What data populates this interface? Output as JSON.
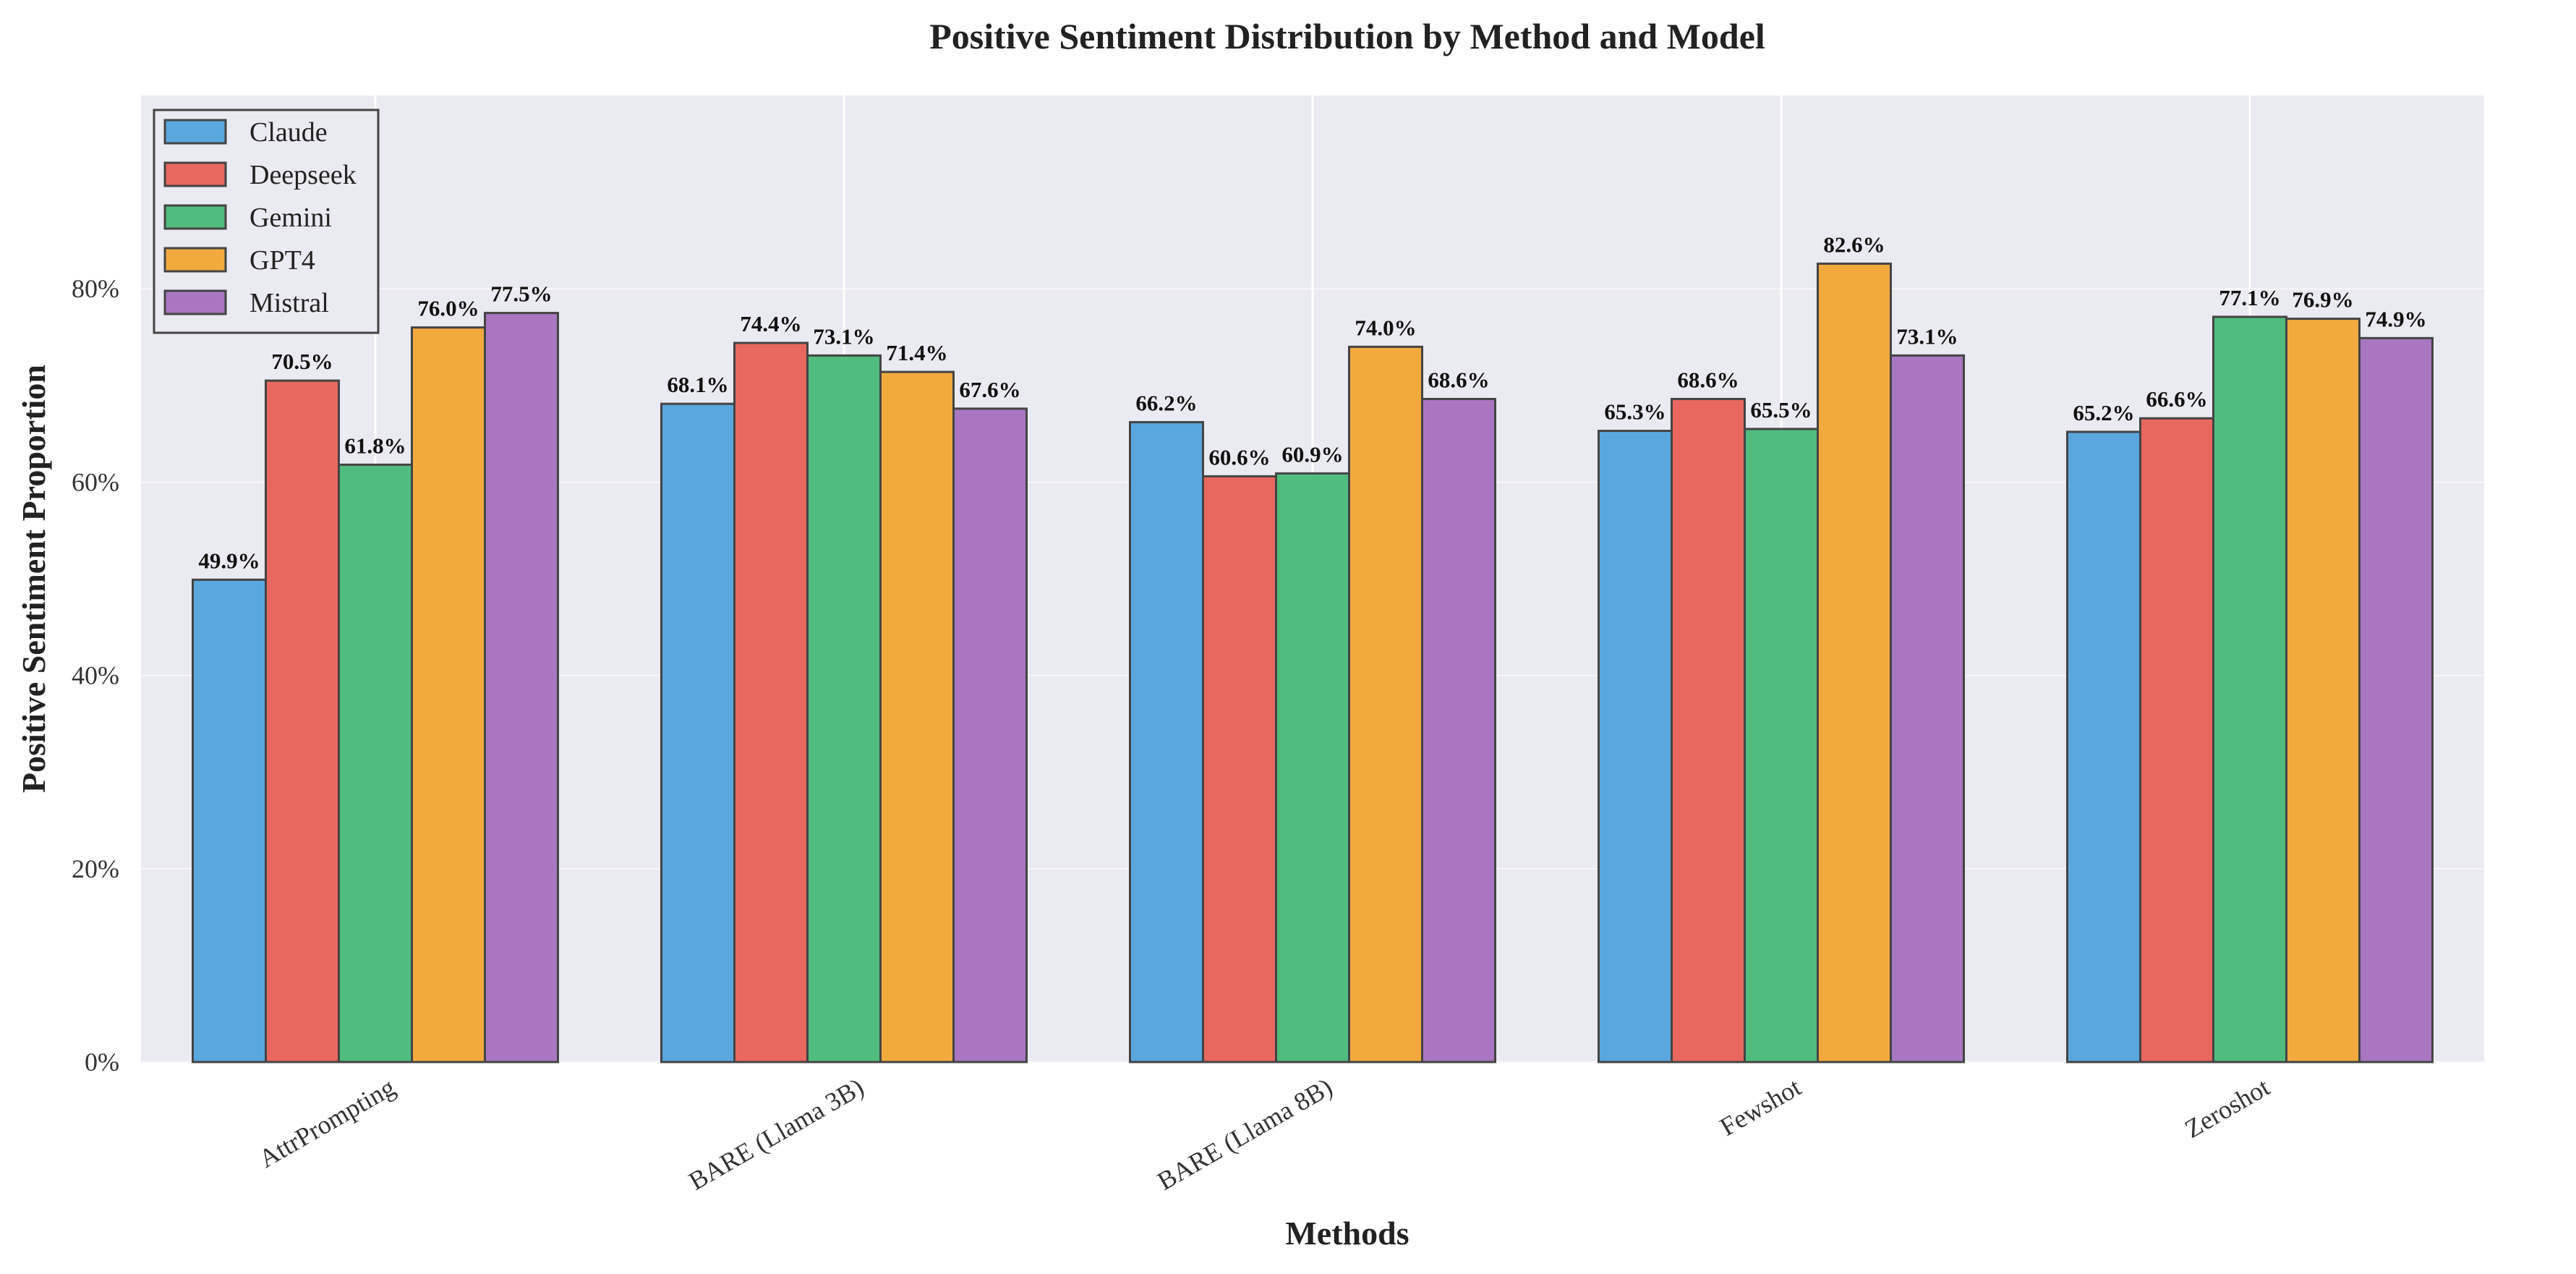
{
  "chart_data": {
    "type": "bar",
    "title": "Positive Sentiment Distribution by Method and Model",
    "xlabel": "Methods",
    "ylabel": "Positive Sentiment Proportion",
    "categories": [
      "AttrPrompting",
      "BARE (Llama 3B)",
      "BARE (Llama 8B)",
      "Fewshot",
      "Zeroshot"
    ],
    "ylim": [
      0,
      100
    ],
    "yticks": [
      0,
      20,
      40,
      60,
      80
    ],
    "ytick_labels": [
      "0%",
      "20%",
      "40%",
      "60%",
      "80%"
    ],
    "grid": true,
    "legend_position": "top-left",
    "series": [
      {
        "name": "Claude",
        "color": "#5aa7de",
        "values": [
          49.9,
          68.1,
          66.2,
          65.3,
          65.2
        ],
        "labels": [
          "49.9%",
          "68.1%",
          "66.2%",
          "65.3%",
          "65.2%"
        ]
      },
      {
        "name": "Deepseek",
        "color": "#e8685f",
        "values": [
          70.5,
          74.4,
          60.6,
          68.6,
          66.6
        ],
        "labels": [
          "70.5%",
          "74.4%",
          "60.6%",
          "68.6%",
          "66.6%"
        ]
      },
      {
        "name": "Gemini",
        "color": "#50bc7e",
        "values": [
          61.8,
          73.1,
          60.9,
          65.5,
          77.1
        ],
        "labels": [
          "61.8%",
          "73.1%",
          "60.9%",
          "65.5%",
          "77.1%"
        ]
      },
      {
        "name": "GPT4",
        "color": "#f2aa3e",
        "values": [
          76.0,
          71.4,
          74.0,
          82.6,
          76.9
        ],
        "labels": [
          "76.0%",
          "71.4%",
          "74.0%",
          "82.6%",
          "76.9%"
        ]
      },
      {
        "name": "Mistral",
        "color": "#a977c1",
        "values": [
          77.5,
          67.6,
          68.6,
          73.1,
          74.9
        ],
        "labels": [
          "77.5%",
          "67.6%",
          "68.6%",
          "73.1%",
          "74.9%"
        ]
      }
    ],
    "plot_background": "#eaeaf2",
    "bar_edge_color": "#444444"
  }
}
